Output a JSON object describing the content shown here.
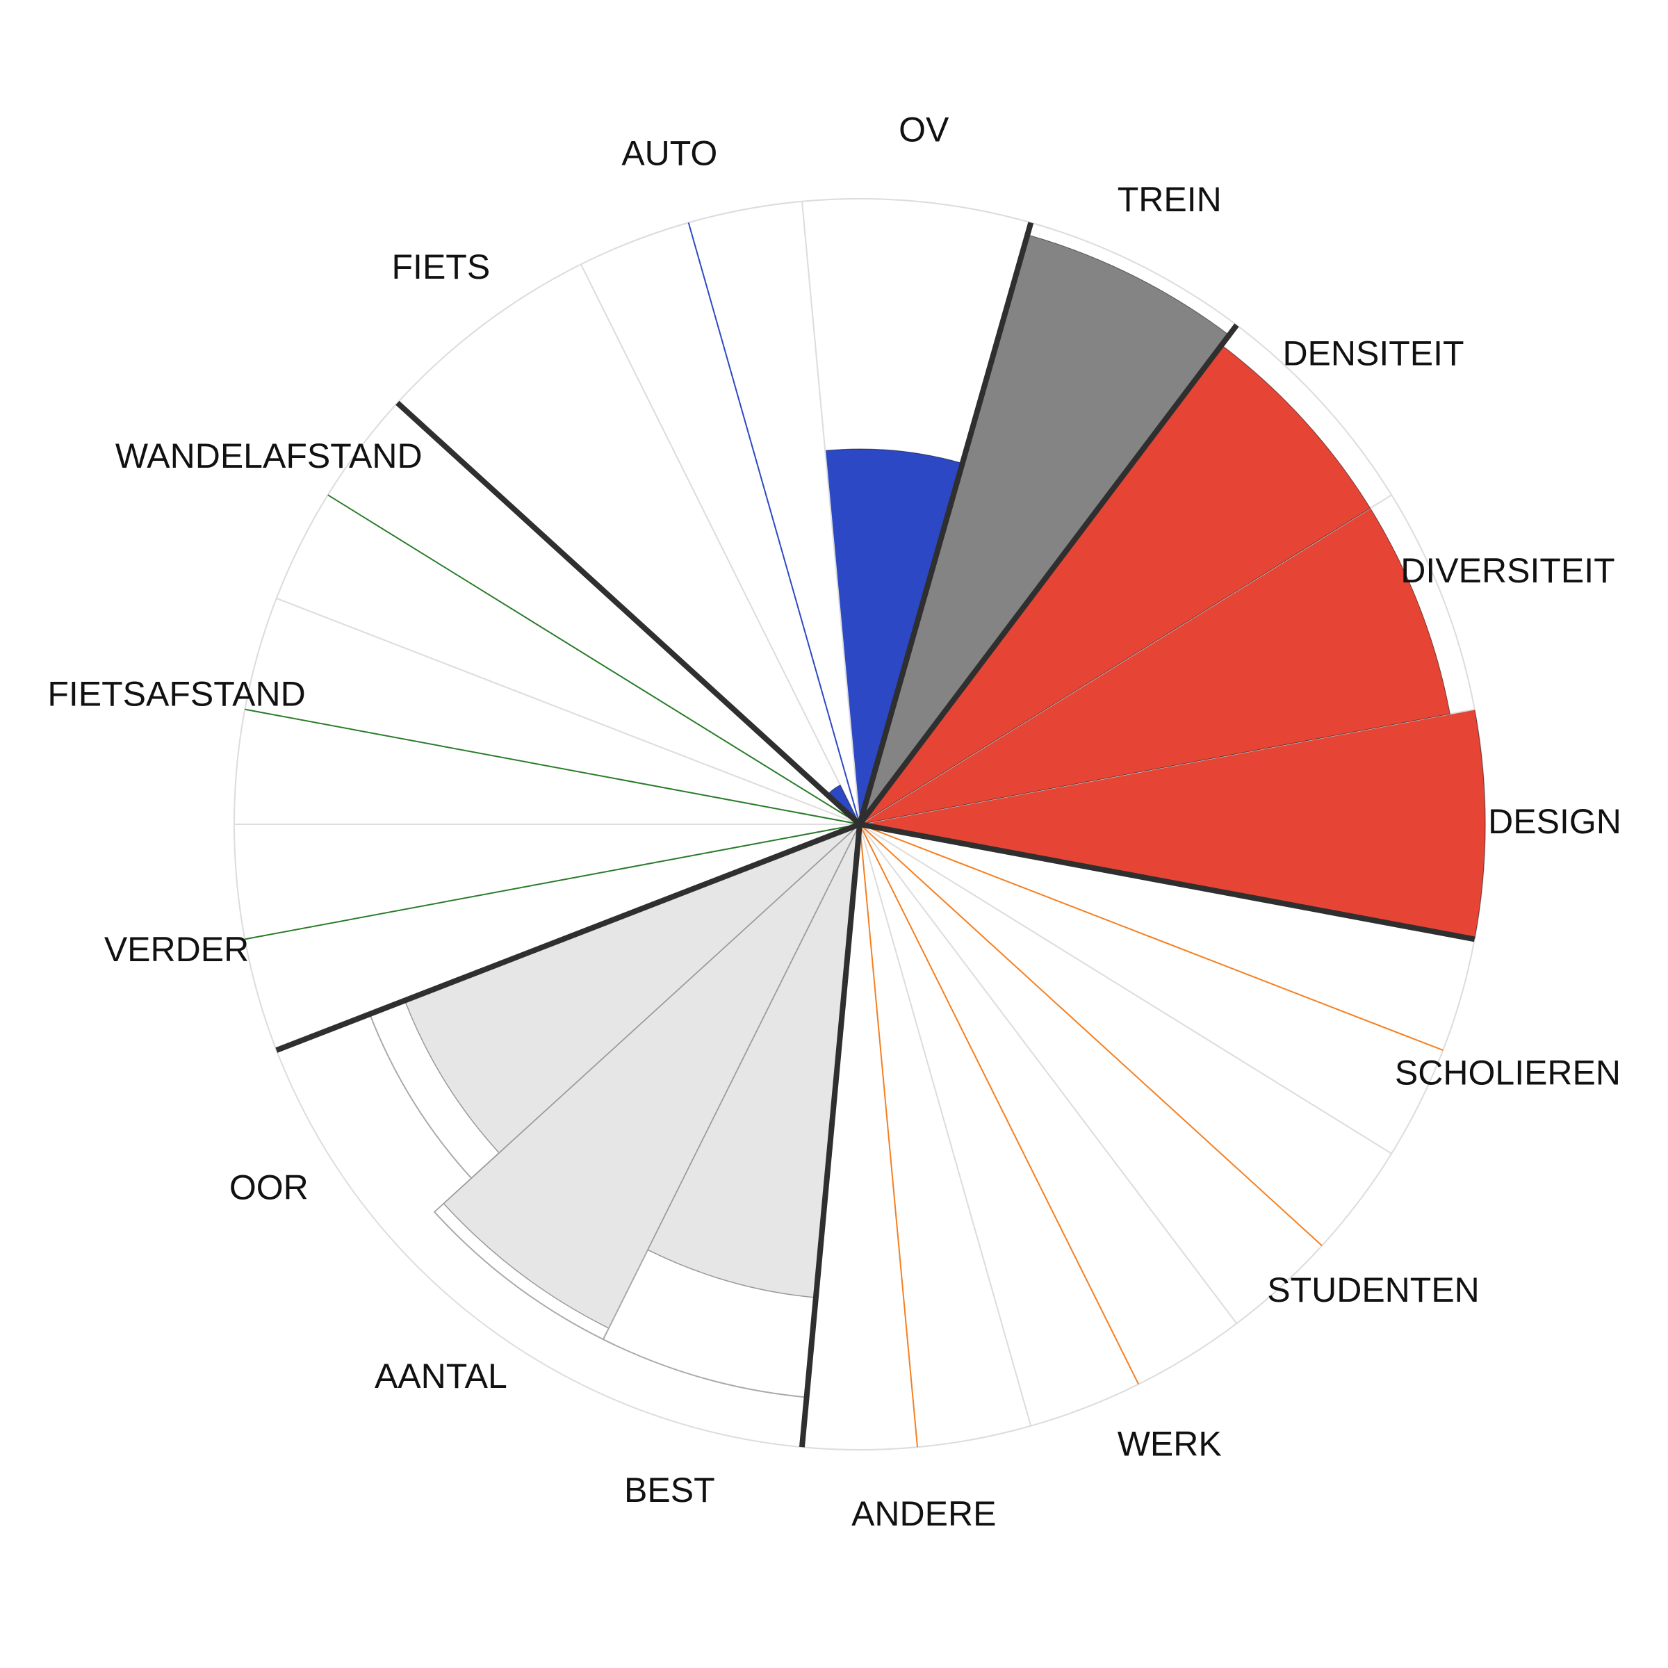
{
  "chart_data": {
    "type": "polar-bar",
    "title": "",
    "grid": true,
    "rlim": [
      0,
      5
    ],
    "categories": [
      "DESIGN",
      "DIVERSITEIT",
      "DENSITEIT",
      "TREIN",
      "OV",
      "AUTO",
      "FIETS",
      "WANDELAFSTAND",
      "FIETSAFSTAND",
      "VERDER",
      "OOR",
      "AANTAL",
      "BEST",
      "ANDERE",
      "WERK",
      "STUDENTEN",
      "SCHOLIEREN"
    ],
    "values": [
      5.0,
      4.8,
      4.8,
      4.9,
      3.0,
      0.0,
      0.35,
      0.0,
      0.0,
      0.0,
      3.9,
      4.5,
      3.8,
      0.0,
      0.0,
      0.0,
      0.0
    ],
    "max_values": [
      5.0,
      5.0,
      5.0,
      5.0,
      5.0,
      5.0,
      5.0,
      5.0,
      5.0,
      5.0,
      4.2,
      4.6,
      4.6,
      5.0,
      5.0,
      5.0,
      5.0
    ],
    "groups": [
      {
        "members": [
          "DESIGN",
          "DIVERSITEIT",
          "DENSITEIT"
        ],
        "color": "#E64535"
      },
      {
        "members": [
          "TREIN"
        ],
        "color": "#848484"
      },
      {
        "members": [
          "OV",
          "AUTO",
          "FIETS"
        ],
        "color": "#2C48C4"
      },
      {
        "members": [
          "WANDELAFSTAND",
          "FIETSAFSTAND",
          "VERDER"
        ],
        "color": "#2A7B2A"
      },
      {
        "members": [
          "OOR",
          "AANTAL",
          "BEST"
        ],
        "color": "#E6E6E6"
      },
      {
        "members": [
          "ANDERE",
          "WERK",
          "STUDENTEN",
          "SCHOLIEREN"
        ],
        "color": "#F57F20"
      }
    ],
    "separator_color": "#2F2F2F",
    "grid_color": "#DDDDDD"
  }
}
